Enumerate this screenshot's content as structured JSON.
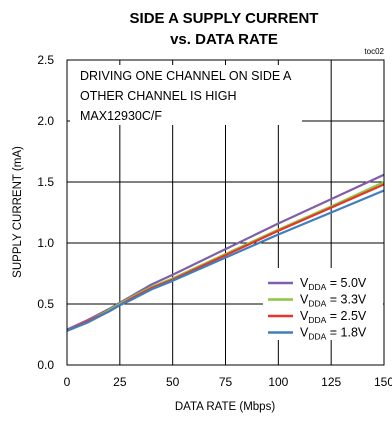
{
  "chart_data": {
    "type": "line",
    "title": "SIDE A SUPPLY CURRENT",
    "subtitle": "vs. DATA RATE",
    "figure_id": "toc02",
    "xlabel": "DATA RATE (Mbps)",
    "ylabel": "SUPPLY CURRENT (mA)",
    "xlim": [
      0,
      150
    ],
    "ylim": [
      0,
      2.5
    ],
    "xticks": [
      0,
      25,
      50,
      75,
      100,
      125,
      150
    ],
    "yticks": [
      0.0,
      0.5,
      1.0,
      1.5,
      2.0,
      2.5
    ],
    "xtick_labels": [
      "0",
      "25",
      "50",
      "75",
      "100",
      "125",
      "150"
    ],
    "ytick_labels": [
      "0.0",
      "0.5",
      "1.0",
      "1.5",
      "2.0",
      "2.5"
    ],
    "grid": true,
    "annotations": [
      "DRIVING ONE CHANNEL ON SIDE A",
      "OTHER CHANNEL IS HIGH",
      "MAX12930C/F"
    ],
    "legend_position": "bottom-right",
    "x": [
      0,
      10,
      20,
      25,
      30,
      40,
      50,
      75,
      100,
      125,
      150
    ],
    "series": [
      {
        "name": "5.0V",
        "color": "#7f5fa8",
        "values": [
          0.29,
          0.37,
          0.46,
          0.51,
          0.56,
          0.66,
          0.74,
          0.95,
          1.16,
          1.36,
          1.56
        ]
      },
      {
        "name": "3.3V",
        "color": "#8cc63f",
        "values": [
          0.28,
          0.36,
          0.45,
          0.5,
          0.55,
          0.64,
          0.71,
          0.91,
          1.11,
          1.3,
          1.5
        ]
      },
      {
        "name": "2.5V",
        "color": "#e8332a",
        "values": [
          0.28,
          0.36,
          0.44,
          0.49,
          0.54,
          0.63,
          0.7,
          0.9,
          1.1,
          1.29,
          1.48
        ]
      },
      {
        "name": "1.8V",
        "color": "#3f7fbf",
        "values": [
          0.28,
          0.35,
          0.44,
          0.49,
          0.53,
          0.62,
          0.69,
          0.88,
          1.07,
          1.25,
          1.43
        ]
      }
    ],
    "legend_label_prefix": "V",
    "legend_label_subscript": "DDA",
    "legend_label_sep": " = "
  }
}
